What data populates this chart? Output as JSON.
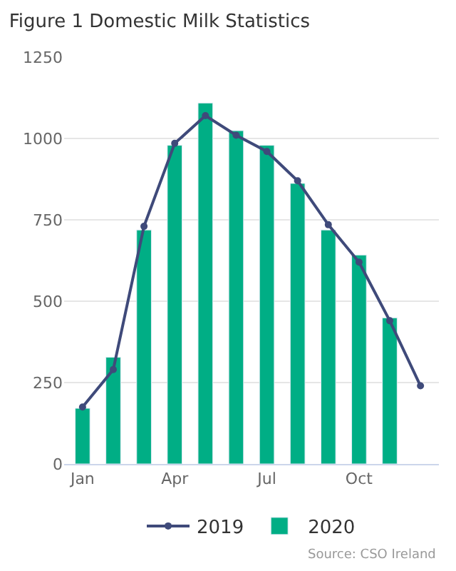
{
  "chart_data": {
    "type": "bar",
    "title": "Figure 1 Domestic Milk Statistics",
    "categories": [
      "Jan",
      null,
      null,
      "Apr",
      null,
      null,
      "Jul",
      null,
      null,
      "Oct",
      null,
      null
    ],
    "series": [
      {
        "name": "2019",
        "type": "line",
        "color": "#3f4a7a",
        "marker": "circle",
        "values": [
          175,
          290,
          730,
          985,
          1070,
          1010,
          960,
          870,
          735,
          620,
          440,
          240
        ]
      },
      {
        "name": "2020",
        "color": "#00ae85",
        "values": [
          171,
          328,
          719,
          979,
          1109,
          1024,
          979,
          862,
          719,
          642,
          449,
          null
        ]
      }
    ],
    "ylim": [
      0,
      1250
    ],
    "yticks": [
      0,
      250,
      500,
      750,
      1000,
      1250
    ],
    "grid": "y",
    "legend": "bottom",
    "annotations": [
      "Source: CSO Ireland"
    ]
  }
}
